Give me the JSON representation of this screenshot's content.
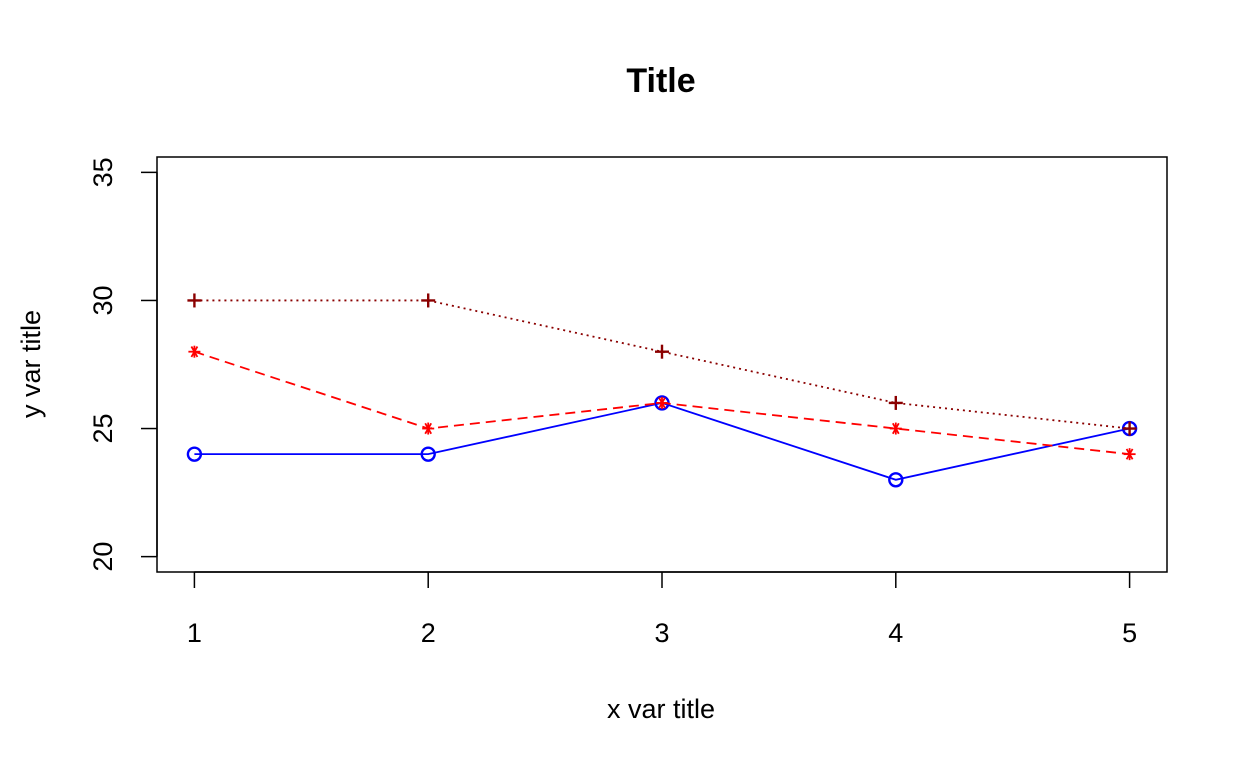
{
  "chart_data": {
    "type": "line",
    "title": "Title",
    "xlabel": "x var title",
    "ylabel": "y var title",
    "x": [
      1,
      2,
      3,
      4,
      5
    ],
    "x_ticks": [
      "1",
      "2",
      "3",
      "4",
      "5"
    ],
    "y_ticks": [
      "20",
      "25",
      "30",
      "35"
    ],
    "xlim": [
      0.84,
      5.16
    ],
    "ylim": [
      19.4,
      35.6
    ],
    "grid": false,
    "legend": "none",
    "series": [
      {
        "values": [
          24,
          24,
          26,
          23,
          25
        ],
        "color": "#0000ff",
        "line_style": "solid",
        "marker": "circle"
      },
      {
        "values": [
          28,
          25,
          26,
          25,
          24
        ],
        "color": "#ff0000",
        "line_style": "dashed",
        "marker": "asterisk"
      },
      {
        "values": [
          30,
          30,
          28,
          26,
          25
        ],
        "color": "#8b0000",
        "line_style": "dotted",
        "marker": "plus"
      }
    ]
  }
}
